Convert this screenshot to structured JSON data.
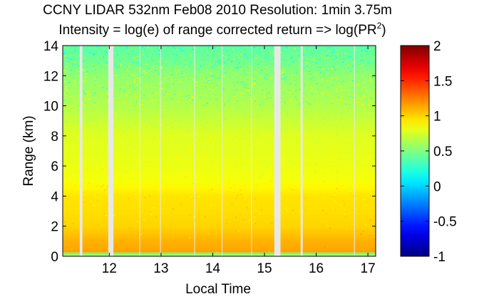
{
  "chart_data": {
    "type": "heatmap",
    "title": "CCNY LIDAR 532nm Feb08 2010 Resolution: 1min 3.75m",
    "subtitle_prefix": "Intensity = log(e) of range corrected return => log(PR",
    "subtitle_sup": "2",
    "subtitle_suffix": ")",
    "xlabel": "Local Time",
    "ylabel": "Range (km)",
    "xlim": [
      11.1,
      17.15
    ],
    "ylim": [
      0,
      14
    ],
    "xticks": [
      12,
      13,
      14,
      15,
      16,
      17
    ],
    "xtick_labels": [
      "12",
      "13",
      "14",
      "15",
      "16",
      "17"
    ],
    "yticks": [
      0,
      2,
      4,
      6,
      8,
      10,
      12,
      14
    ],
    "ytick_labels": [
      "0",
      "2",
      "4",
      "6",
      "8",
      "10",
      "12",
      "14"
    ],
    "colorbar": {
      "min": -1,
      "max": 2,
      "ticks": [
        -1,
        -0.5,
        0,
        0.5,
        1,
        1.5,
        2
      ],
      "tick_labels": [
        "-1",
        "-0.5",
        "0",
        "0.5",
        "1",
        "1.5",
        "2"
      ],
      "colormap": "jet"
    },
    "profile": {
      "range_km": [
        0,
        0.15,
        0.3,
        0.5,
        1,
        1.5,
        2,
        3,
        4,
        4.5,
        5,
        6,
        8,
        10,
        12,
        13,
        14
      ],
      "intensity": [
        0.5,
        0.6,
        1.15,
        1.13,
        1.1,
        1.05,
        1.0,
        0.97,
        0.95,
        0.9,
        0.85,
        0.82,
        0.78,
        0.65,
        0.55,
        0.45,
        0.4
      ]
    },
    "data_gaps_local_time": [
      [
        11.43,
        11.48
      ],
      [
        11.98,
        12.08
      ],
      [
        15.19,
        15.31
      ],
      [
        15.7,
        15.74
      ]
    ],
    "thin_gaps_local_time": [
      12.59,
      12.99,
      13.65,
      14.18,
      14.75,
      16.74
    ]
  },
  "colors": {
    "gap": "#e8e8e8",
    "frame": "#000000",
    "background": "#ffffff"
  }
}
